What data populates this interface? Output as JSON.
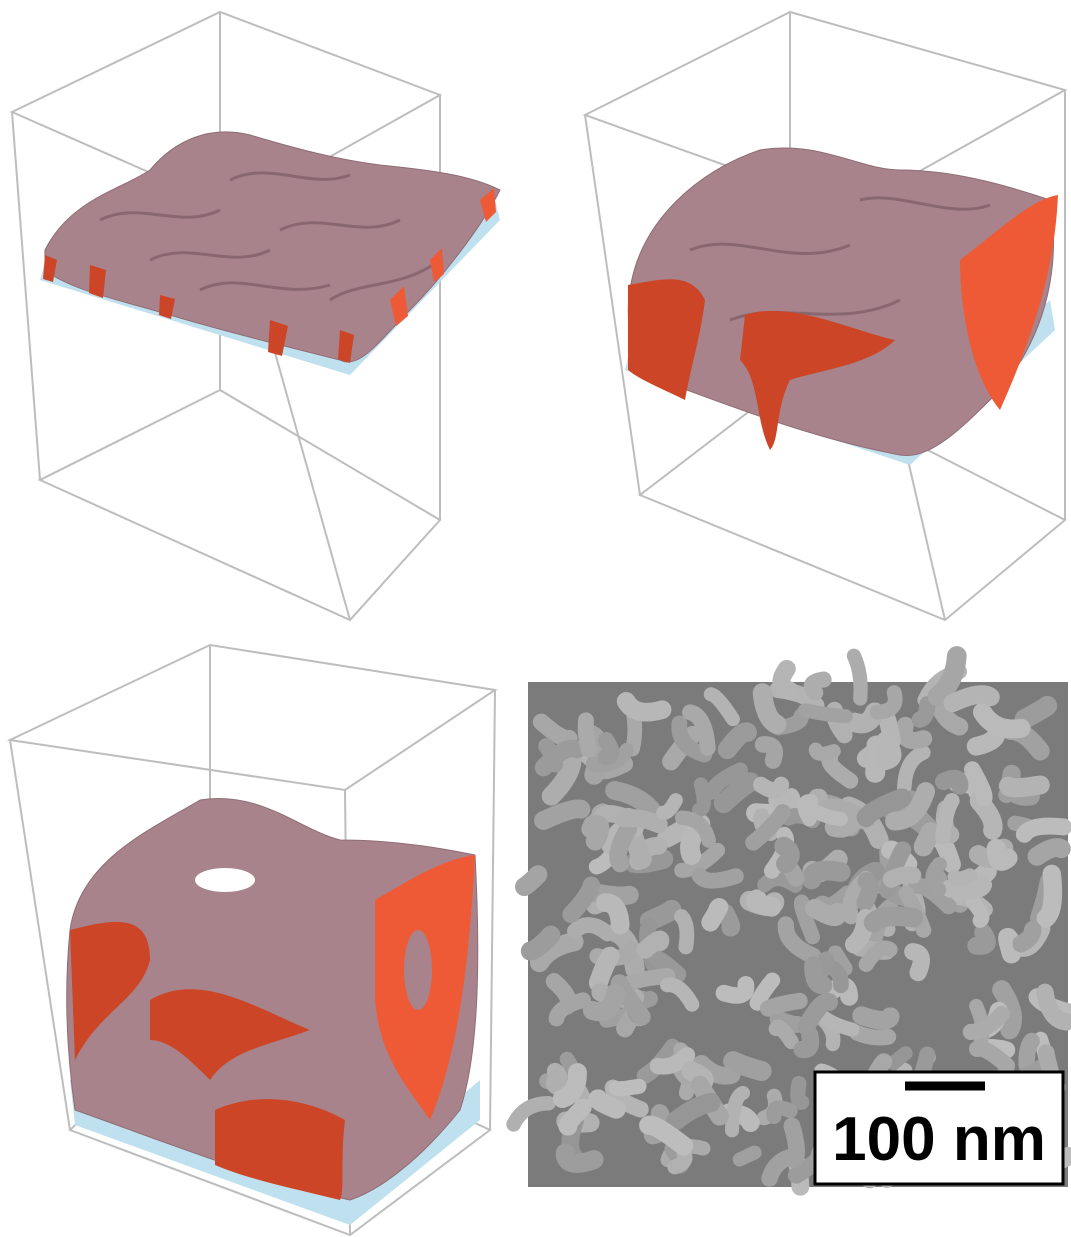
{
  "scale_bar": {
    "label": "100 nm"
  }
}
